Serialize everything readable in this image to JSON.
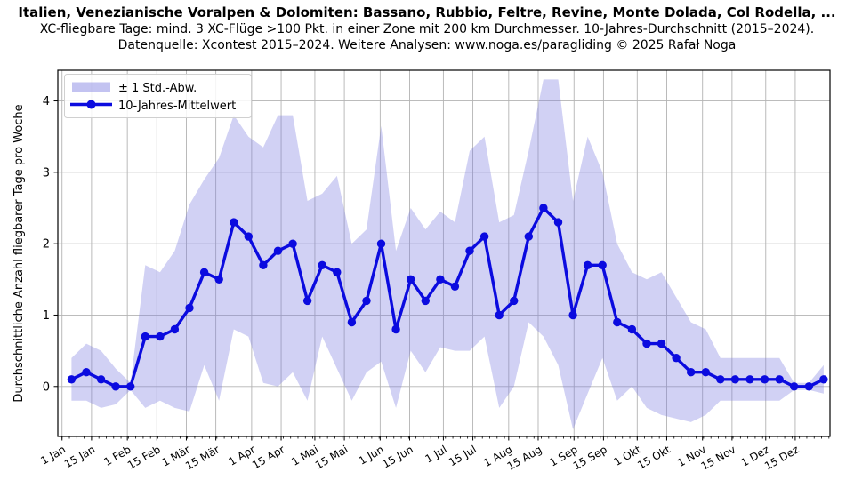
{
  "header": {
    "title": "Italien, Venezianische Voralpen & Dolomiten: Bassano, Rubbio, Feltre, Revine, Monte Dolada, Col Rodella, ...",
    "subtitle1": "XC-fliegbare Tage: mind. 3 XC-Flüge >100 Pkt. in einer Zone mit 200 km Durchmesser. 10-Jahres-Durchschnitt (2015–2024).",
    "subtitle2": "Datenquelle: Xcontest 2015–2024. Weitere Analysen: www.noga.es/paragliding © 2025 Rafał Noga"
  },
  "legend": {
    "band_label": "± 1 Std.-Abw.",
    "line_label": "10-Jahres-Mittelwert"
  },
  "chart_data": {
    "type": "line",
    "title": "Italien, Venezianische Voralpen & Dolomiten: Bassano, Rubbio, Feltre, Revine, Monte Dolada, Col Rodella, ...",
    "xlabel": "",
    "ylabel": "Durchschnittliche Anzahl fliegbarer Tage pro Woche",
    "x_unit": "Kalenderwoche 1-52, Wochenmitte in Tag-des-Jahres",
    "weeks": [
      1,
      2,
      3,
      4,
      5,
      6,
      7,
      8,
      9,
      10,
      11,
      12,
      13,
      14,
      15,
      16,
      17,
      18,
      19,
      20,
      21,
      22,
      23,
      24,
      25,
      26,
      27,
      28,
      29,
      30,
      31,
      32,
      33,
      34,
      35,
      36,
      37,
      38,
      39,
      40,
      41,
      42,
      43,
      44,
      45,
      46,
      47,
      48,
      49,
      50,
      51,
      52
    ],
    "series": [
      {
        "name": "10-Jahres-Mittelwert",
        "values": [
          0.1,
          0.2,
          0.1,
          0.0,
          0.0,
          0.7,
          0.7,
          0.8,
          1.1,
          1.6,
          1.5,
          2.3,
          2.1,
          1.7,
          1.9,
          2.0,
          1.2,
          1.7,
          1.6,
          0.9,
          1.2,
          2.0,
          0.8,
          1.5,
          1.2,
          1.5,
          1.4,
          1.9,
          2.1,
          1.0,
          1.2,
          2.1,
          2.5,
          2.3,
          1.0,
          1.7,
          1.7,
          0.9,
          0.8,
          0.6,
          0.6,
          0.4,
          0.2,
          0.2,
          0.1,
          0.1,
          0.1,
          0.1,
          0.1,
          0.0,
          0.0,
          0.1
        ]
      },
      {
        "name": "± 1 Std.-Abw.",
        "std_values": [
          0.3,
          0.4,
          0.4,
          0.25,
          0.05,
          1.0,
          0.9,
          1.1,
          1.45,
          1.3,
          1.7,
          1.5,
          1.4,
          1.65,
          1.9,
          1.8,
          1.4,
          1.0,
          1.35,
          1.1,
          1.0,
          1.65,
          1.1,
          1.0,
          1.0,
          0.95,
          0.9,
          1.4,
          1.4,
          1.3,
          1.2,
          1.2,
          1.8,
          2.0,
          1.6,
          1.8,
          1.3,
          1.1,
          0.8,
          0.9,
          1.0,
          0.85,
          0.7,
          0.6,
          0.3,
          0.3,
          0.3,
          0.3,
          0.3,
          0.05,
          0.05,
          0.2
        ]
      }
    ],
    "x_tick_labels": [
      "1 Jan",
      "15 Jan",
      "1 Feb",
      "15 Feb",
      "1 Mär",
      "15 Mär",
      "1 Apr",
      "15 Apr",
      "1 Mai",
      "15 Mai",
      "1 Jun",
      "15 Jun",
      "1 Jul",
      "15 Jul",
      "1 Aug",
      "15 Aug",
      "1 Sep",
      "15 Sep",
      "1 Okt",
      "15 Okt",
      "1 Nov",
      "15 Nov",
      "1 Dez",
      "15 Dez"
    ],
    "x_tick_days": [
      1,
      15,
      32,
      46,
      60,
      74,
      91,
      105,
      121,
      135,
      152,
      166,
      182,
      196,
      213,
      227,
      244,
      258,
      274,
      288,
      305,
      319,
      335,
      349
    ],
    "x_minor_tick_interval_days": 3.5,
    "y_ticks": [
      0,
      1,
      2,
      3,
      4
    ],
    "ylim": [
      -0.7,
      4.43
    ],
    "xlim_days": [
      -1,
      365.5
    ],
    "grid": true,
    "legend_position": "upper-left",
    "colors": {
      "line": "#0b0bdf",
      "band_base": "#7b7bdf",
      "band_opacity": 0.35,
      "grid": "#b3b3b3",
      "spine": "#000000",
      "legend_border": "#d0d0d0"
    }
  }
}
